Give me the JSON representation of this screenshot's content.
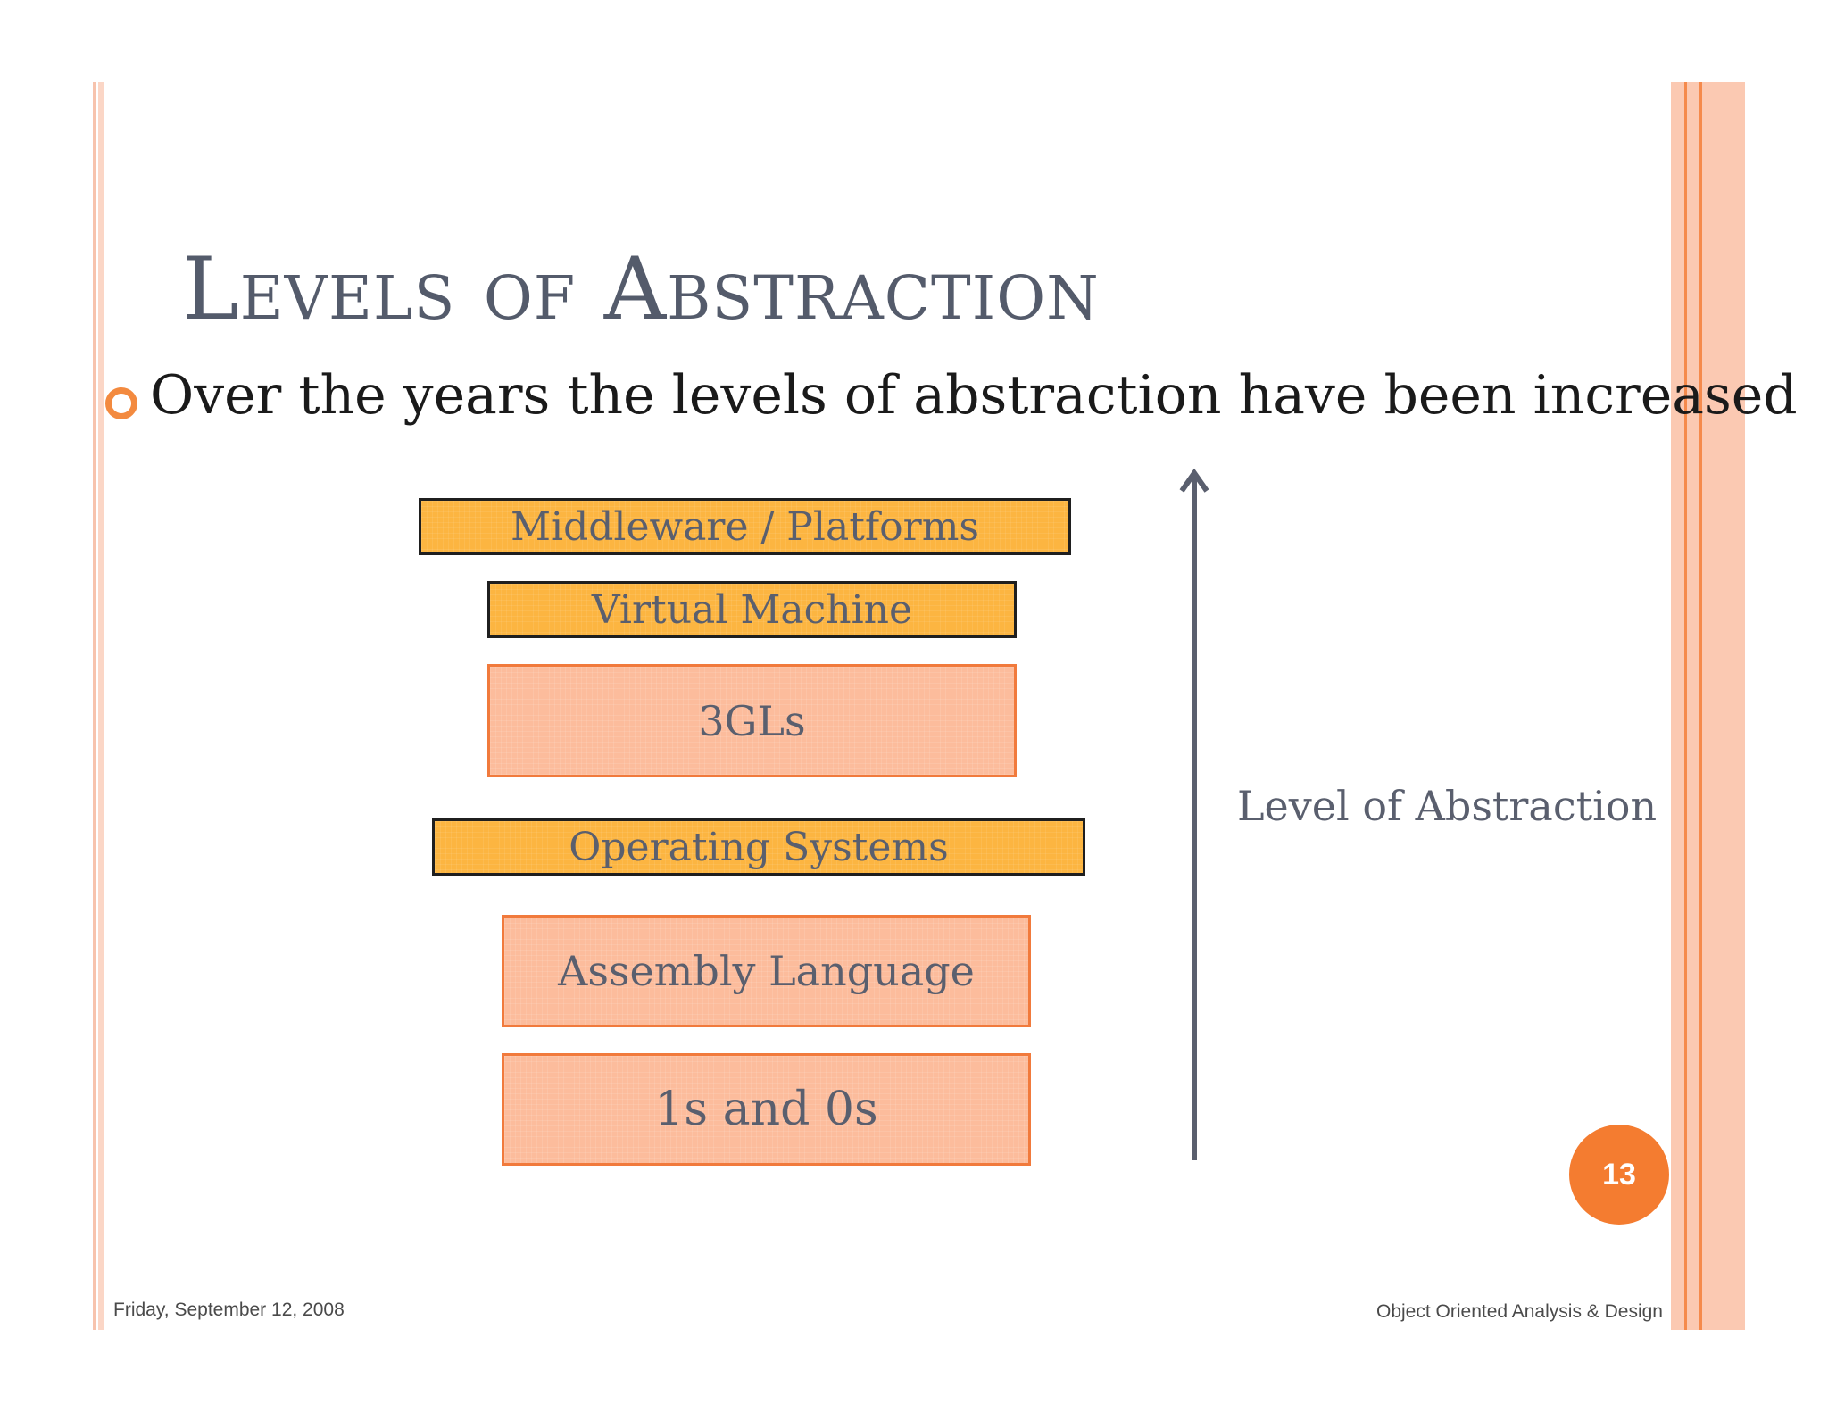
{
  "slide": {
    "title": "Levels of Abstraction",
    "bullet": "Over the years the levels of abstraction have been increased",
    "page_number": "13"
  },
  "diagram": {
    "layers": [
      {
        "label": "Middleware / Platforms",
        "style": "yellow"
      },
      {
        "label": "Virtual Machine",
        "style": "yellow"
      },
      {
        "label": "3GLs",
        "style": "salmon"
      },
      {
        "label": "Operating Systems",
        "style": "yellow"
      },
      {
        "label": "Assembly Language",
        "style": "salmon"
      },
      {
        "label": "1s and 0s",
        "style": "salmon"
      }
    ],
    "axis_label": "Level of Abstraction",
    "arrow_direction": "up"
  },
  "footer": {
    "date": "Friday, September 12, 2008",
    "course": "Object Oriented Analysis & Design"
  },
  "colors": {
    "layer_yellow": "#fcb541",
    "layer_salmon": "#fcbc9c",
    "accent_orange": "#f47c30",
    "arrow": "#5a5f6e"
  },
  "icons": {
    "bullet": "hollow-circle-bullet-icon",
    "arrow": "up-arrow-icon"
  }
}
